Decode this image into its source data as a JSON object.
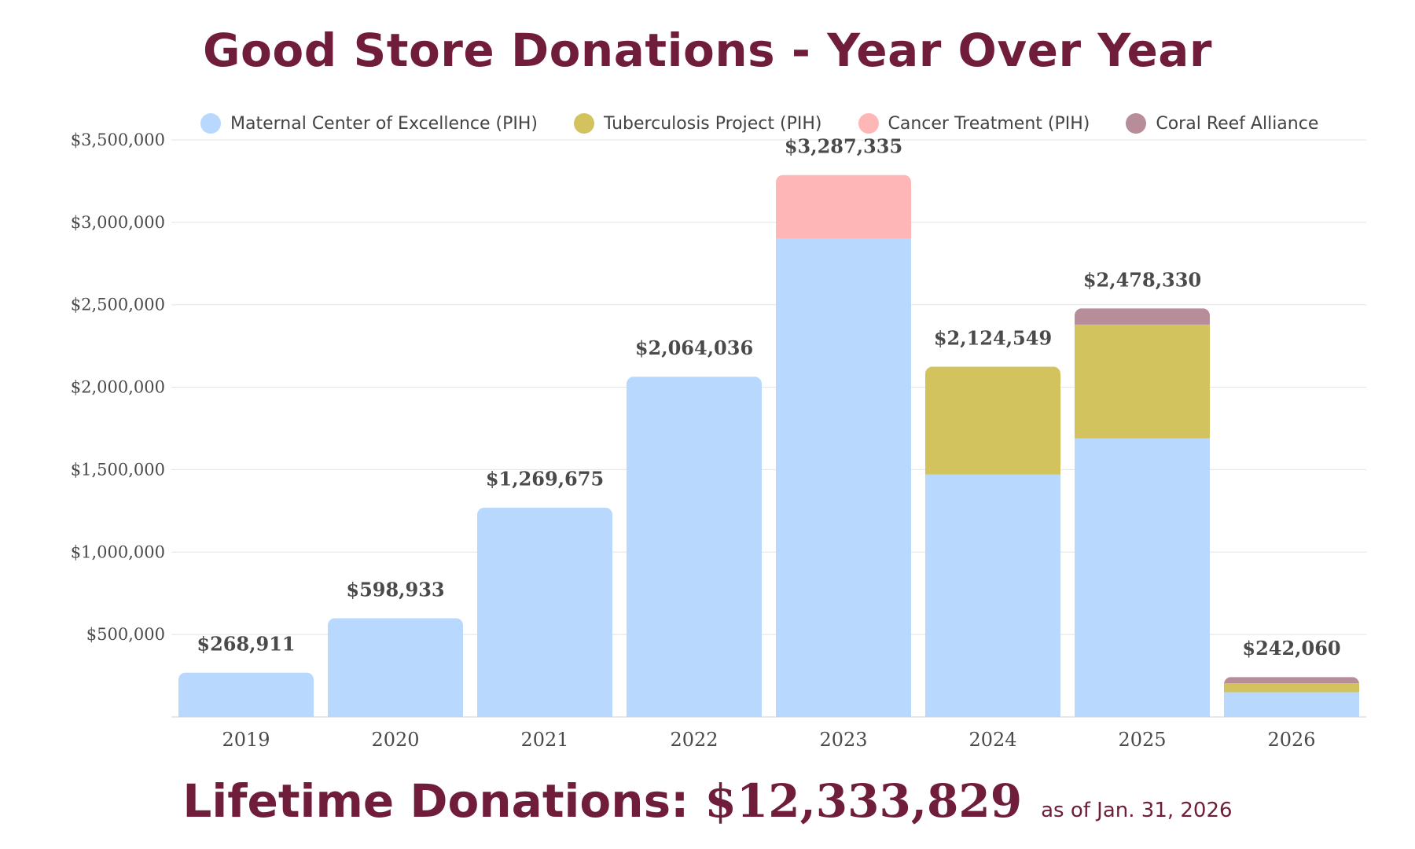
{
  "colors": {
    "title": "#6f1d3b",
    "grid": "#e3e3e3",
    "axis": "#d0d0d0",
    "text": "#4a4a4a"
  },
  "chart_data": {
    "type": "bar",
    "stacked": true,
    "title": "Good Store Donations - Year Over Year",
    "xlabel": "",
    "ylabel": "",
    "ylim": [
      0,
      3500000
    ],
    "yticks": [
      500000,
      1000000,
      1500000,
      2000000,
      2500000,
      3000000,
      3500000
    ],
    "ytick_labels": [
      "$500,000",
      "$1,000,000",
      "$1,500,000",
      "$2,000,000",
      "$2,500,000",
      "$3,000,000",
      "$3,500,000"
    ],
    "grid": true,
    "legend_position": "top",
    "categories": [
      "2019",
      "2020",
      "2021",
      "2022",
      "2023",
      "2024",
      "2025",
      "2026"
    ],
    "series": [
      {
        "name": "Maternal Center of Excellence (PIH)",
        "color": "#b8d9fd",
        "values": [
          268911,
          598933,
          1269675,
          2064036,
          2900000,
          1470000,
          1690000,
          150000
        ]
      },
      {
        "name": "Tuberculosis Project (PIH)",
        "color": "#d2c35f",
        "values": [
          0,
          0,
          0,
          0,
          0,
          654549,
          690000,
          55000
        ]
      },
      {
        "name": "Cancer Treatment (PIH)",
        "color": "#ffb6b6",
        "values": [
          0,
          0,
          0,
          0,
          387335,
          0,
          0,
          0
        ]
      },
      {
        "name": "Coral Reef Alliance",
        "color": "#b68d99",
        "values": [
          0,
          0,
          0,
          0,
          0,
          0,
          98330,
          37060
        ]
      }
    ],
    "totals": [
      268911,
      598933,
      1269675,
      2064036,
      3287335,
      2124549,
      2478330,
      242060
    ],
    "total_labels": [
      "$268,911",
      "$598,933",
      "$1,269,675",
      "$2,064,036",
      "$3,287,335",
      "$2,124,549",
      "$2,478,330",
      "$242,060"
    ]
  },
  "footer": {
    "lifetime_label": "Lifetime Donations:",
    "lifetime_amount": "$12,333,829",
    "as_of": "as of Jan. 31, 2026"
  }
}
